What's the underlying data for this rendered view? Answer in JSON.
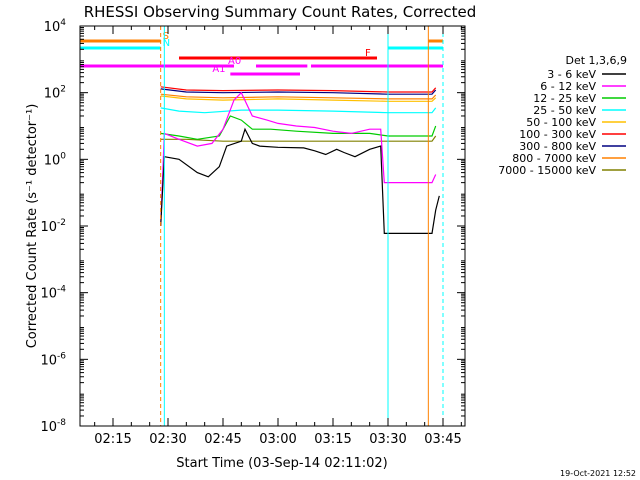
{
  "chart_data": {
    "type": "line",
    "title": "RHESSI Observing Summary Count Rates, Corrected",
    "xlabel": "Start Time (03-Sep-14 02:11:02)",
    "ylabel": "Corrected Count Rate (s⁻¹ detector⁻¹)",
    "xlim": [
      "02:06",
      "03:51"
    ],
    "ylim": [
      1e-08,
      10000
    ],
    "yscale": "log",
    "xticks": [
      "02:15",
      "02:30",
      "02:45",
      "03:00",
      "03:15",
      "03:30",
      "03:45"
    ],
    "yticks": [
      "10^-8",
      "10^-6",
      "10^-4",
      "10^-2",
      "10^0",
      "10^2",
      "10^4"
    ],
    "legend_title": "Det 1,3,6,9",
    "legend_position": "right",
    "series": [
      {
        "name": "3 - 6 keV",
        "color": "#000000",
        "points": [
          [
            "02:28",
            0.01
          ],
          [
            "02:29",
            1.2
          ],
          [
            "02:33",
            1.0
          ],
          [
            "02:38",
            0.4
          ],
          [
            "02:41",
            0.3
          ],
          [
            "02:44",
            0.6
          ],
          [
            "02:46",
            2.5
          ],
          [
            "02:50",
            3.5
          ],
          [
            "02:51",
            8
          ],
          [
            "02:53",
            3
          ],
          [
            "02:55",
            2.5
          ],
          [
            "03:00",
            2.3
          ],
          [
            "03:07",
            2.2
          ],
          [
            "03:10",
            1.8
          ],
          [
            "03:13",
            1.4
          ],
          [
            "03:16",
            2.0
          ],
          [
            "03:18",
            1.6
          ],
          [
            "03:21",
            1.2
          ],
          [
            "03:25",
            2.0
          ],
          [
            "03:28",
            2.5
          ],
          [
            "03:29",
            0.006
          ],
          [
            "03:42",
            0.006
          ],
          [
            "03:43",
            0.03
          ],
          [
            "03:44",
            0.08
          ]
        ]
      },
      {
        "name": "6 - 12 keV",
        "color": "#ff00ff",
        "points": [
          [
            "02:28",
            0.01
          ],
          [
            "02:29",
            6
          ],
          [
            "02:33",
            4
          ],
          [
            "02:38",
            2.5
          ],
          [
            "02:42",
            3
          ],
          [
            "02:45",
            8
          ],
          [
            "02:48",
            60
          ],
          [
            "02:50",
            100
          ],
          [
            "02:53",
            20
          ],
          [
            "02:57",
            15
          ],
          [
            "03:00",
            12
          ],
          [
            "03:05",
            10
          ],
          [
            "03:10",
            9
          ],
          [
            "03:15",
            7
          ],
          [
            "03:20",
            6
          ],
          [
            "03:25",
            8
          ],
          [
            "03:28",
            8
          ],
          [
            "03:29",
            0.2
          ],
          [
            "03:42",
            0.2
          ],
          [
            "03:43",
            0.35
          ]
        ]
      },
      {
        "name": "12 - 25 keV",
        "color": "#00cc00",
        "points": [
          [
            "02:28",
            6
          ],
          [
            "02:33",
            5
          ],
          [
            "02:38",
            4
          ],
          [
            "02:44",
            5
          ],
          [
            "02:47",
            20
          ],
          [
            "02:50",
            15
          ],
          [
            "02:53",
            8
          ],
          [
            "02:58",
            8
          ],
          [
            "03:05",
            7
          ],
          [
            "03:15",
            6
          ],
          [
            "03:25",
            6
          ],
          [
            "03:30",
            5
          ],
          [
            "03:42",
            5
          ],
          [
            "03:43",
            10
          ]
        ]
      },
      {
        "name": "25 - 50 keV",
        "color": "#00ffff",
        "points": [
          [
            "02:28",
            35
          ],
          [
            "02:33",
            28
          ],
          [
            "02:40",
            25
          ],
          [
            "02:50",
            30
          ],
          [
            "03:00",
            30
          ],
          [
            "03:15",
            28
          ],
          [
            "03:30",
            25
          ],
          [
            "03:42",
            25
          ],
          [
            "03:43",
            35
          ]
        ]
      },
      {
        "name": "50 - 100 keV",
        "color": "#ffc000",
        "points": [
          [
            "02:28",
            80
          ],
          [
            "02:35",
            65
          ],
          [
            "02:45",
            60
          ],
          [
            "03:00",
            65
          ],
          [
            "03:15",
            60
          ],
          [
            "03:30",
            55
          ],
          [
            "03:42",
            55
          ],
          [
            "03:43",
            70
          ]
        ]
      },
      {
        "name": "100 - 300 keV",
        "color": "#ff0000",
        "points": [
          [
            "02:28",
            150
          ],
          [
            "02:35",
            120
          ],
          [
            "02:45",
            115
          ],
          [
            "03:00",
            120
          ],
          [
            "03:15",
            115
          ],
          [
            "03:30",
            105
          ],
          [
            "03:42",
            105
          ],
          [
            "03:43",
            140
          ]
        ]
      },
      {
        "name": "300 - 800 keV",
        "color": "#000080",
        "points": [
          [
            "02:28",
            130
          ],
          [
            "02:35",
            105
          ],
          [
            "02:45",
            100
          ],
          [
            "03:00",
            105
          ],
          [
            "03:15",
            100
          ],
          [
            "03:30",
            90
          ],
          [
            "03:42",
            90
          ],
          [
            "03:43",
            120
          ]
        ]
      },
      {
        "name": "800 - 7000 keV",
        "color": "#ff8000",
        "points": [
          [
            "02:28",
            90
          ],
          [
            "02:35",
            75
          ],
          [
            "02:45",
            70
          ],
          [
            "03:00",
            75
          ],
          [
            "03:15",
            70
          ],
          [
            "03:30",
            65
          ],
          [
            "03:42",
            65
          ],
          [
            "03:43",
            85
          ]
        ]
      },
      {
        "name": "7000 - 15000 keV",
        "color": "#808000",
        "points": [
          [
            "02:28",
            4
          ],
          [
            "02:35",
            4
          ],
          [
            "02:45",
            3.5
          ],
          [
            "03:00",
            3.5
          ],
          [
            "03:15",
            3.5
          ],
          [
            "03:30",
            3.5
          ],
          [
            "03:42",
            3.5
          ],
          [
            "03:43",
            5
          ]
        ]
      }
    ],
    "flag_bars": [
      {
        "label": "S",
        "color": "#ff8000",
        "segments": [
          [
            "02:06",
            "02:28"
          ],
          [
            "03:41",
            "03:45"
          ]
        ]
      },
      {
        "label": "N",
        "color": "#00ffff",
        "segments": [
          [
            "02:06",
            "02:28"
          ],
          [
            "03:30",
            "03:45"
          ]
        ]
      },
      {
        "label": "F",
        "color": "#ff0000",
        "segments": [
          [
            "02:33",
            "03:27"
          ]
        ]
      },
      {
        "label": "A0",
        "color": "#ff00ff",
        "segments": [
          [
            "02:06",
            "02:48"
          ],
          [
            "02:54",
            "03:08"
          ],
          [
            "03:09",
            "03:45"
          ]
        ]
      },
      {
        "label": "A1",
        "color": "#ff00ff",
        "segments": [
          [
            "02:47",
            "03:06"
          ]
        ]
      }
    ],
    "vertical_lines": [
      {
        "time": "02:06",
        "color": "#00ffff",
        "style": "solid"
      },
      {
        "time": "02:28",
        "color": "#ff8000",
        "style": "dashed"
      },
      {
        "time": "02:29",
        "color": "#00ffff",
        "style": "solid"
      },
      {
        "time": "03:30",
        "color": "#00ffff",
        "style": "solid"
      },
      {
        "time": "03:41",
        "color": "#ff8000",
        "style": "solid"
      },
      {
        "time": "03:45",
        "color": "#00ffff",
        "style": "dashed"
      }
    ],
    "footer_date": "19-Oct-2021 12:52"
  }
}
